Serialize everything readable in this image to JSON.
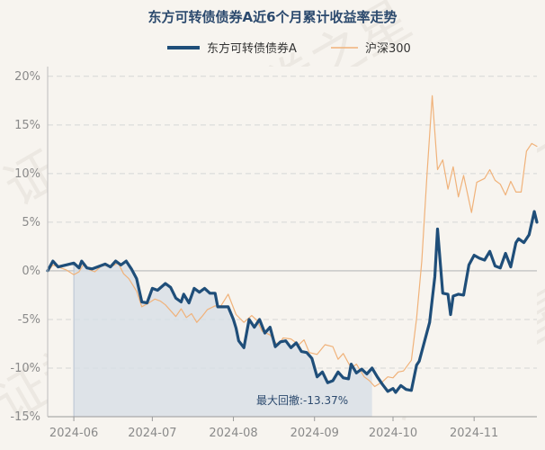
{
  "chart_data": {
    "type": "line",
    "title": "东方可转债债券A近6个月累计收益率走势",
    "watermark": "证券之星",
    "x_ticks": [
      "2024-06",
      "2024-07",
      "2024-08",
      "2024-09",
      "2024-10",
      "2024-11"
    ],
    "x_tick_dates": [
      "2024-06-01",
      "2024-07-01",
      "2024-08-01",
      "2024-09-01",
      "2024-10-01",
      "2024-11-01"
    ],
    "y_ticks": [
      "20%",
      "15%",
      "10%",
      "5%",
      "0%",
      "-5%",
      "-10%",
      "-15%"
    ],
    "y_tick_values": [
      20,
      15,
      10,
      5,
      0,
      -5,
      -10,
      -15
    ],
    "ylim": [
      -15,
      21
    ],
    "xlim": [
      "2024-05-22",
      "2024-11-25"
    ],
    "grid": "horizontal dashed",
    "legend_position": "top-center",
    "drawdown": {
      "label": "最大回撤:-13.37%",
      "start": "2024-06-01",
      "end": "2024-09-23"
    },
    "series": [
      {
        "name": "东方可转债债券A",
        "color": "#1f4e79",
        "points": [
          [
            "2024-05-22",
            0.0
          ],
          [
            "2024-05-24",
            1.0
          ],
          [
            "2024-05-26",
            0.4
          ],
          [
            "2024-05-29",
            0.6
          ],
          [
            "2024-06-01",
            0.8
          ],
          [
            "2024-06-03",
            0.3
          ],
          [
            "2024-06-04",
            1.0
          ],
          [
            "2024-06-06",
            0.3
          ],
          [
            "2024-06-08",
            0.2
          ],
          [
            "2024-06-13",
            0.7
          ],
          [
            "2024-06-15",
            0.4
          ],
          [
            "2024-06-17",
            1.0
          ],
          [
            "2024-06-19",
            0.6
          ],
          [
            "2024-06-21",
            1.0
          ],
          [
            "2024-06-23",
            0.2
          ],
          [
            "2024-06-25",
            -0.8
          ],
          [
            "2024-06-27",
            -3.2
          ],
          [
            "2024-06-29",
            -3.3
          ],
          [
            "2024-07-01",
            -1.8
          ],
          [
            "2024-07-03",
            -2.0
          ],
          [
            "2024-07-06",
            -1.3
          ],
          [
            "2024-07-08",
            -1.7
          ],
          [
            "2024-07-10",
            -2.8
          ],
          [
            "2024-07-12",
            -3.2
          ],
          [
            "2024-07-13",
            -2.4
          ],
          [
            "2024-07-15",
            -3.3
          ],
          [
            "2024-07-17",
            -1.8
          ],
          [
            "2024-07-19",
            -2.2
          ],
          [
            "2024-07-21",
            -1.8
          ],
          [
            "2024-07-23",
            -2.3
          ],
          [
            "2024-07-25",
            -2.3
          ],
          [
            "2024-07-26",
            -3.7
          ],
          [
            "2024-07-30",
            -3.7
          ],
          [
            "2024-08-01",
            -5.0
          ],
          [
            "2024-08-02",
            -5.9
          ],
          [
            "2024-08-03",
            -7.2
          ],
          [
            "2024-08-05",
            -7.9
          ],
          [
            "2024-08-07",
            -5.0
          ],
          [
            "2024-08-09",
            -5.8
          ],
          [
            "2024-08-11",
            -5.0
          ],
          [
            "2024-08-13",
            -6.4
          ],
          [
            "2024-08-15",
            -5.8
          ],
          [
            "2024-08-17",
            -7.8
          ],
          [
            "2024-08-19",
            -7.3
          ],
          [
            "2024-08-21",
            -7.2
          ],
          [
            "2024-08-23",
            -7.9
          ],
          [
            "2024-08-25",
            -7.4
          ],
          [
            "2024-08-27",
            -8.3
          ],
          [
            "2024-08-29",
            -8.4
          ],
          [
            "2024-08-31",
            -9.0
          ],
          [
            "2024-09-02",
            -10.9
          ],
          [
            "2024-09-04",
            -10.4
          ],
          [
            "2024-09-06",
            -11.5
          ],
          [
            "2024-09-08",
            -11.3
          ],
          [
            "2024-09-10",
            -10.4
          ],
          [
            "2024-09-12",
            -11.0
          ],
          [
            "2024-09-14",
            -11.1
          ],
          [
            "2024-09-15",
            -9.6
          ],
          [
            "2024-09-17",
            -10.5
          ],
          [
            "2024-09-19",
            -10.1
          ],
          [
            "2024-09-21",
            -10.6
          ],
          [
            "2024-09-23",
            -10.0
          ],
          [
            "2024-09-25",
            -10.9
          ],
          [
            "2024-09-27",
            -11.7
          ],
          [
            "2024-09-29",
            -12.4
          ],
          [
            "2024-10-01",
            -12.1
          ],
          [
            "2024-10-02",
            -12.5
          ],
          [
            "2024-10-04",
            -11.8
          ],
          [
            "2024-10-06",
            -12.2
          ],
          [
            "2024-10-08",
            -12.3
          ],
          [
            "2024-10-10",
            -9.7
          ],
          [
            "2024-10-11",
            -9.3
          ],
          [
            "2024-10-13",
            -7.3
          ],
          [
            "2024-10-15",
            -5.3
          ],
          [
            "2024-10-17",
            -0.6
          ],
          [
            "2024-10-18",
            4.3
          ],
          [
            "2024-10-20",
            -2.3
          ],
          [
            "2024-10-22",
            -2.4
          ],
          [
            "2024-10-23",
            -4.5
          ],
          [
            "2024-10-24",
            -2.6
          ],
          [
            "2024-10-26",
            -2.4
          ],
          [
            "2024-10-28",
            -2.5
          ],
          [
            "2024-10-30",
            0.6
          ],
          [
            "2024-11-01",
            1.6
          ],
          [
            "2024-11-03",
            1.3
          ],
          [
            "2024-11-05",
            1.1
          ],
          [
            "2024-11-07",
            2.0
          ],
          [
            "2024-11-09",
            0.5
          ],
          [
            "2024-11-11",
            0.3
          ],
          [
            "2024-11-13",
            1.8
          ],
          [
            "2024-11-15",
            0.4
          ],
          [
            "2024-11-17",
            2.9
          ],
          [
            "2024-11-18",
            3.3
          ],
          [
            "2024-11-20",
            2.9
          ],
          [
            "2024-11-22",
            3.7
          ],
          [
            "2024-11-24",
            6.1
          ],
          [
            "2024-11-25",
            5.0
          ]
        ]
      },
      {
        "name": "沪深300",
        "color": "#f0b27a",
        "points": [
          [
            "2024-05-22",
            -0.1
          ],
          [
            "2024-05-24",
            0.6
          ],
          [
            "2024-05-26",
            0.4
          ],
          [
            "2024-05-29",
            0.1
          ],
          [
            "2024-06-01",
            -0.4
          ],
          [
            "2024-06-03",
            -0.1
          ],
          [
            "2024-06-05",
            0.8
          ],
          [
            "2024-06-07",
            0.1
          ],
          [
            "2024-06-09",
            -0.1
          ],
          [
            "2024-06-12",
            0.6
          ],
          [
            "2024-06-15",
            0.4
          ],
          [
            "2024-06-18",
            0.8
          ],
          [
            "2024-06-20",
            -0.3
          ],
          [
            "2024-06-22",
            -0.8
          ],
          [
            "2024-06-25",
            -2.1
          ],
          [
            "2024-06-27",
            -3.7
          ],
          [
            "2024-06-29",
            -3.4
          ],
          [
            "2024-07-02",
            -2.9
          ],
          [
            "2024-07-04",
            -3.1
          ],
          [
            "2024-07-06",
            -3.5
          ],
          [
            "2024-07-08",
            -4.1
          ],
          [
            "2024-07-10",
            -4.7
          ],
          [
            "2024-07-12",
            -3.9
          ],
          [
            "2024-07-14",
            -4.8
          ],
          [
            "2024-07-16",
            -4.4
          ],
          [
            "2024-07-18",
            -5.3
          ],
          [
            "2024-07-20",
            -4.7
          ],
          [
            "2024-07-22",
            -4.0
          ],
          [
            "2024-07-25",
            -3.6
          ],
          [
            "2024-07-27",
            -3.7
          ],
          [
            "2024-07-30",
            -2.4
          ],
          [
            "2024-08-02",
            -4.5
          ],
          [
            "2024-08-05",
            -5.3
          ],
          [
            "2024-08-08",
            -4.6
          ],
          [
            "2024-08-10",
            -5.1
          ],
          [
            "2024-08-12",
            -6.2
          ],
          [
            "2024-08-15",
            -6.6
          ],
          [
            "2024-08-18",
            -7.7
          ],
          [
            "2024-08-20",
            -6.9
          ],
          [
            "2024-08-23",
            -7.0
          ],
          [
            "2024-08-26",
            -7.6
          ],
          [
            "2024-08-28",
            -7.1
          ],
          [
            "2024-08-30",
            -8.4
          ],
          [
            "2024-09-02",
            -8.6
          ],
          [
            "2024-09-05",
            -7.6
          ],
          [
            "2024-09-08",
            -7.8
          ],
          [
            "2024-09-10",
            -9.1
          ],
          [
            "2024-09-12",
            -8.5
          ],
          [
            "2024-09-15",
            -10.0
          ],
          [
            "2024-09-17",
            -9.6
          ],
          [
            "2024-09-20",
            -10.9
          ],
          [
            "2024-09-22",
            -11.3
          ],
          [
            "2024-09-24",
            -11.9
          ],
          [
            "2024-09-27",
            -11.4
          ],
          [
            "2024-09-29",
            -10.9
          ],
          [
            "2024-10-01",
            -11.0
          ],
          [
            "2024-10-03",
            -10.4
          ],
          [
            "2024-10-05",
            -10.3
          ],
          [
            "2024-10-08",
            -9.2
          ],
          [
            "2024-10-10",
            -4.9
          ],
          [
            "2024-10-12",
            1.0
          ],
          [
            "2024-10-14",
            9.9
          ],
          [
            "2024-10-16",
            18.0
          ],
          [
            "2024-10-18",
            10.4
          ],
          [
            "2024-10-20",
            11.4
          ],
          [
            "2024-10-22",
            8.4
          ],
          [
            "2024-10-24",
            10.7
          ],
          [
            "2024-10-26",
            7.6
          ],
          [
            "2024-10-28",
            9.8
          ],
          [
            "2024-10-31",
            6.0
          ],
          [
            "2024-11-02",
            9.1
          ],
          [
            "2024-11-05",
            9.5
          ],
          [
            "2024-11-07",
            10.4
          ],
          [
            "2024-11-09",
            9.3
          ],
          [
            "2024-11-11",
            8.9
          ],
          [
            "2024-11-13",
            7.8
          ],
          [
            "2024-11-15",
            9.2
          ],
          [
            "2024-11-17",
            8.1
          ],
          [
            "2024-11-19",
            8.1
          ],
          [
            "2024-11-21",
            12.3
          ],
          [
            "2024-11-23",
            13.1
          ],
          [
            "2024-11-25",
            12.8
          ]
        ]
      }
    ]
  }
}
